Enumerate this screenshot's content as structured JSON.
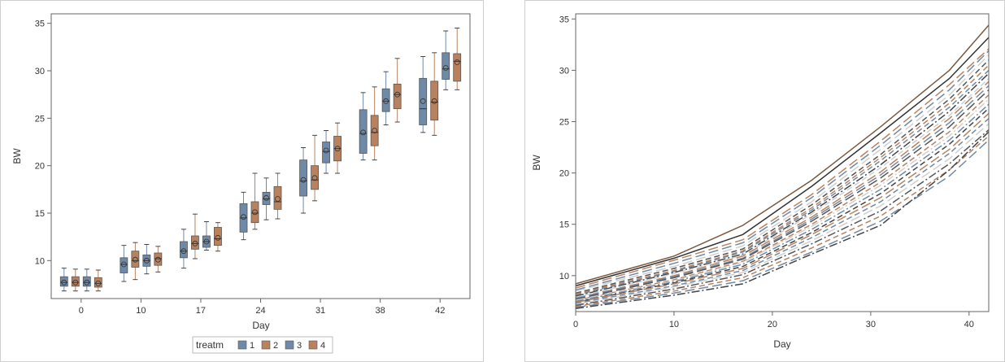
{
  "colors": {
    "treat1": "#6f8aa8",
    "treat2": "#b9825f",
    "treat3": "#6f8aa8",
    "treat4": "#b9825f",
    "frame": "#666666",
    "text": "#333333"
  },
  "chart_data": [
    {
      "type": "box",
      "xlabel": "Day",
      "ylabel": "BW",
      "ylim": [
        6,
        36
      ],
      "yticks": [
        10,
        15,
        20,
        25,
        30,
        35
      ],
      "categories": [
        "0",
        "10",
        "17",
        "24",
        "31",
        "38",
        "42"
      ],
      "legend": {
        "title": "treatm",
        "placement": "bottom",
        "entries": [
          "1",
          "2",
          "3",
          "4"
        ]
      },
      "groups": [
        {
          "day": "0",
          "boxes": [
            {
              "treatm": "1",
              "min": 6.8,
              "q1": 7.3,
              "median": 7.7,
              "mean": 7.7,
              "q3": 8.3,
              "max": 9.2
            },
            {
              "treatm": "2",
              "min": 6.8,
              "q1": 7.3,
              "median": 7.7,
              "mean": 7.7,
              "q3": 8.3,
              "max": 9.1
            },
            {
              "treatm": "3",
              "min": 6.8,
              "q1": 7.3,
              "median": 7.7,
              "mean": 7.7,
              "q3": 8.3,
              "max": 9.1
            },
            {
              "treatm": "4",
              "min": 6.8,
              "q1": 7.2,
              "median": 7.6,
              "mean": 7.6,
              "q3": 8.2,
              "max": 9.0
            }
          ]
        },
        {
          "day": "10",
          "boxes": [
            {
              "treatm": "1",
              "min": 7.8,
              "q1": 8.7,
              "median": 9.6,
              "mean": 9.6,
              "q3": 10.3,
              "max": 11.6
            },
            {
              "treatm": "2",
              "min": 8.0,
              "q1": 9.3,
              "median": 10.0,
              "mean": 10.1,
              "q3": 11.0,
              "max": 11.9
            },
            {
              "treatm": "3",
              "min": 8.6,
              "q1": 9.4,
              "median": 10.0,
              "mean": 10.0,
              "q3": 10.6,
              "max": 11.7
            },
            {
              "treatm": "4",
              "min": 8.8,
              "q1": 9.5,
              "median": 10.2,
              "mean": 10.1,
              "q3": 10.8,
              "max": 11.5
            }
          ]
        },
        {
          "day": "17",
          "boxes": [
            {
              "treatm": "1",
              "min": 9.2,
              "q1": 10.3,
              "median": 11.0,
              "mean": 11.0,
              "q3": 12.0,
              "max": 13.3
            },
            {
              "treatm": "2",
              "min": 10.2,
              "q1": 11.2,
              "median": 11.8,
              "mean": 11.8,
              "q3": 12.6,
              "max": 14.9
            },
            {
              "treatm": "3",
              "min": 11.1,
              "q1": 11.4,
              "median": 12.0,
              "mean": 12.0,
              "q3": 12.6,
              "max": 14.1
            },
            {
              "treatm": "4",
              "min": 11.0,
              "q1": 11.6,
              "median": 12.3,
              "mean": 12.4,
              "q3": 13.5,
              "max": 14.0
            }
          ]
        },
        {
          "day": "24",
          "boxes": [
            {
              "treatm": "1",
              "min": 12.2,
              "q1": 13.0,
              "median": 14.5,
              "mean": 14.6,
              "q3": 16.0,
              "max": 17.2
            },
            {
              "treatm": "2",
              "min": 13.3,
              "q1": 14.0,
              "median": 15.0,
              "mean": 15.1,
              "q3": 16.2,
              "max": 19.2
            },
            {
              "treatm": "3",
              "min": 14.3,
              "q1": 15.9,
              "median": 16.5,
              "mean": 16.6,
              "q3": 17.2,
              "max": 18.7
            },
            {
              "treatm": "4",
              "min": 14.4,
              "q1": 15.4,
              "median": 16.2,
              "mean": 16.5,
              "q3": 17.8,
              "max": 19.2
            }
          ]
        },
        {
          "day": "31",
          "boxes": [
            {
              "treatm": "1",
              "min": 15.0,
              "q1": 16.8,
              "median": 18.4,
              "mean": 18.5,
              "q3": 20.6,
              "max": 21.9
            },
            {
              "treatm": "2",
              "min": 16.3,
              "q1": 17.5,
              "median": 18.5,
              "mean": 18.7,
              "q3": 20.0,
              "max": 23.2
            },
            {
              "treatm": "3",
              "min": 19.2,
              "q1": 20.3,
              "median": 21.5,
              "mean": 21.6,
              "q3": 22.5,
              "max": 23.7
            },
            {
              "treatm": "4",
              "min": 19.2,
              "q1": 20.5,
              "median": 21.8,
              "mean": 21.8,
              "q3": 23.1,
              "max": 24.5
            }
          ]
        },
        {
          "day": "38",
          "boxes": [
            {
              "treatm": "1",
              "min": 20.6,
              "q1": 21.3,
              "median": 23.4,
              "mean": 23.5,
              "q3": 25.9,
              "max": 27.7
            },
            {
              "treatm": "2",
              "min": 20.6,
              "q1": 22.1,
              "median": 23.5,
              "mean": 23.7,
              "q3": 25.3,
              "max": 28.3
            },
            {
              "treatm": "3",
              "min": 24.3,
              "q1": 25.7,
              "median": 26.8,
              "mean": 26.8,
              "q3": 28.1,
              "max": 29.9
            },
            {
              "treatm": "4",
              "min": 24.6,
              "q1": 26.0,
              "median": 27.5,
              "mean": 27.5,
              "q3": 28.6,
              "max": 31.3
            }
          ]
        },
        {
          "day": "42",
          "boxes": [
            {
              "treatm": "1",
              "min": 23.5,
              "q1": 24.3,
              "median": 26.0,
              "mean": 26.8,
              "q3": 29.2,
              "max": 31.5
            },
            {
              "treatm": "2",
              "min": 23.2,
              "q1": 24.8,
              "median": 26.7,
              "mean": 26.8,
              "q3": 28.9,
              "max": 31.9
            },
            {
              "treatm": "3",
              "min": 28.0,
              "q1": 29.1,
              "median": 30.2,
              "mean": 30.3,
              "q3": 31.9,
              "max": 34.2
            },
            {
              "treatm": "4",
              "min": 28.0,
              "q1": 28.9,
              "median": 31.0,
              "mean": 30.9,
              "q3": 31.8,
              "max": 34.5
            }
          ]
        }
      ]
    },
    {
      "type": "line",
      "xlabel": "Day",
      "ylabel": "BW",
      "xlim": [
        0,
        42
      ],
      "ylim": [
        6.5,
        35.5
      ],
      "xticks": [
        0,
        10,
        20,
        30,
        40
      ],
      "yticks": [
        10,
        15,
        20,
        25,
        30,
        35
      ],
      "x": [
        0,
        10,
        17,
        24,
        31,
        38,
        42
      ],
      "series": [
        {
          "color": "#7c5a40",
          "dash": "solid",
          "values": [
            9.2,
            11.9,
            14.9,
            19.3,
            24.5,
            30.0,
            34.4
          ]
        },
        {
          "color": "#333333",
          "dash": "solid",
          "values": [
            9.0,
            11.7,
            14.0,
            18.7,
            23.9,
            29.2,
            33.2
          ]
        },
        {
          "color": "#b9825f",
          "dash": "long",
          "values": [
            8.8,
            11.5,
            13.5,
            17.9,
            23.1,
            28.6,
            32.1
          ]
        },
        {
          "color": "#6f8aa8",
          "dash": "long",
          "values": [
            8.6,
            11.2,
            13.2,
            17.6,
            22.7,
            28.1,
            31.9
          ]
        },
        {
          "color": "#cfcfcf",
          "dash": "long",
          "values": [
            8.5,
            10.9,
            12.9,
            17.2,
            22.3,
            27.6,
            31.5
          ]
        },
        {
          "color": "#555555",
          "dash": "medium",
          "values": [
            8.3,
            10.7,
            12.6,
            16.9,
            21.8,
            27.2,
            31.0
          ]
        },
        {
          "color": "#b9825f",
          "dash": "medium",
          "values": [
            8.2,
            10.5,
            12.4,
            16.6,
            21.5,
            26.8,
            30.5
          ]
        },
        {
          "color": "#6f8aa8",
          "dash": "medium",
          "values": [
            8.1,
            10.4,
            12.3,
            16.4,
            21.2,
            26.4,
            30.0
          ]
        },
        {
          "color": "#444444",
          "dash": "dashdot",
          "values": [
            8.0,
            10.3,
            12.1,
            16.2,
            20.8,
            26.0,
            29.7
          ]
        },
        {
          "color": "#cfcfcf",
          "dash": "medium",
          "values": [
            7.9,
            10.2,
            12.0,
            16.0,
            20.5,
            25.6,
            29.2
          ]
        },
        {
          "color": "#b9825f",
          "dash": "long",
          "values": [
            7.8,
            10.0,
            11.9,
            15.7,
            20.1,
            25.3,
            28.9
          ]
        },
        {
          "color": "#6f8aa8",
          "dash": "long",
          "values": [
            7.8,
            9.9,
            11.7,
            15.5,
            19.8,
            24.9,
            28.5
          ]
        },
        {
          "color": "#555555",
          "dash": "long",
          "values": [
            7.7,
            9.8,
            11.6,
            15.3,
            19.5,
            24.5,
            28.1
          ]
        },
        {
          "color": "#b9825f",
          "dash": "medium",
          "values": [
            7.6,
            9.6,
            11.4,
            15.0,
            19.1,
            24.0,
            27.6
          ]
        },
        {
          "color": "#cfcfcf",
          "dash": "dashdot",
          "values": [
            7.6,
            9.5,
            11.3,
            14.8,
            18.8,
            23.6,
            27.2
          ]
        },
        {
          "color": "#6f8aa8",
          "dash": "dashdot",
          "values": [
            7.5,
            9.4,
            11.1,
            14.5,
            18.4,
            23.2,
            26.7
          ]
        },
        {
          "color": "#444444",
          "dash": "medium",
          "values": [
            7.4,
            9.3,
            10.9,
            14.2,
            18.0,
            22.8,
            26.3
          ]
        },
        {
          "color": "#b9825f",
          "dash": "long",
          "values": [
            7.4,
            9.2,
            10.7,
            14.0,
            17.6,
            22.3,
            25.8
          ]
        },
        {
          "color": "#6f8aa8",
          "dash": "medium",
          "values": [
            7.3,
            9.0,
            10.5,
            13.7,
            17.2,
            21.9,
            25.3
          ]
        },
        {
          "color": "#cfcfcf",
          "dash": "long",
          "values": [
            7.2,
            8.9,
            10.3,
            13.4,
            16.8,
            21.4,
            24.8
          ]
        },
        {
          "color": "#555555",
          "dash": "dashdot",
          "values": [
            7.1,
            8.7,
            10.1,
            13.1,
            16.3,
            20.9,
            24.2
          ]
        },
        {
          "color": "#b9825f",
          "dash": "medium",
          "values": [
            7.0,
            8.5,
            9.8,
            12.7,
            15.8,
            20.3,
            23.6
          ]
        },
        {
          "color": "#6f8aa8",
          "dash": "long",
          "values": [
            6.9,
            8.3,
            9.5,
            12.3,
            15.3,
            19.7,
            23.2
          ]
        },
        {
          "color": "#444444",
          "dash": "dashdot",
          "values": [
            6.8,
            8.1,
            9.2,
            12.1,
            14.9,
            20.3,
            24.0
          ]
        }
      ]
    }
  ]
}
